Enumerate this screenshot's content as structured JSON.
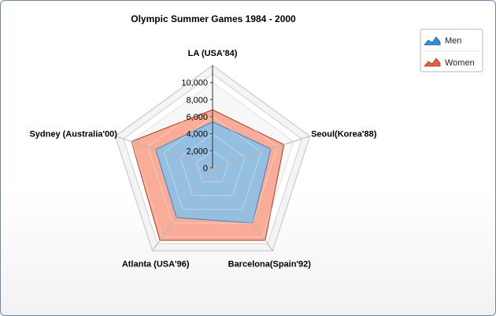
{
  "chart_data": {
    "type": "radar",
    "title": "Olympic Summer Games 1984 - 2000",
    "categories": [
      "LA (USA'84)",
      "Seoul(Korea'88)",
      "Barcelona(Spain'92)",
      "Atlanta (USA'96)",
      "Sydney (Australia'00)"
    ],
    "series": [
      {
        "name": "Women",
        "values": [
          6800,
          8800,
          10500,
          10500,
          10000
        ]
      },
      {
        "name": "Men",
        "values": [
          5400,
          7200,
          8000,
          7200,
          7000
        ]
      }
    ],
    "ylim": [
      0,
      12000
    ],
    "y_ticks": [
      0,
      2000,
      4000,
      6000,
      8000,
      10000
    ],
    "y_tick_labels": [
      "0",
      "2,000",
      "4,000",
      "6,000",
      "8,000",
      "10,000"
    ],
    "grid": true,
    "legend": {
      "position": "top-right",
      "items": [
        {
          "label": "Men",
          "color": "#2f8fd1"
        },
        {
          "label": "Women",
          "color": "#e8603a"
        }
      ]
    },
    "colors": {
      "Men": "#8bc0e6",
      "Women": "#f8a690",
      "Women_outline": "#b3371c",
      "Men_outline": "#4a7fb0"
    }
  }
}
